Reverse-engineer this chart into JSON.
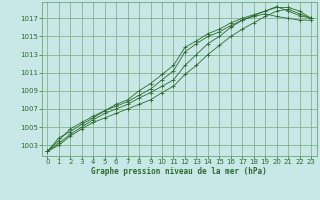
{
  "title": "Graphe pression niveau de la mer (hPa)",
  "background_color": "#c8e8e8",
  "grid_color": "#7aaa7a",
  "line_color": "#2d6a2d",
  "spine_color": "#5a9a5a",
  "xlim": [
    -0.5,
    23.5
  ],
  "ylim": [
    1001.8,
    1018.8
  ],
  "xticks": [
    0,
    1,
    2,
    3,
    4,
    5,
    6,
    7,
    8,
    9,
    10,
    11,
    12,
    13,
    14,
    15,
    16,
    17,
    18,
    19,
    20,
    21,
    22,
    23
  ],
  "yticks": [
    1003,
    1005,
    1007,
    1009,
    1011,
    1013,
    1015,
    1017
  ],
  "series": [
    [
      1002.3,
      1003.8,
      1004.5,
      1005.3,
      1006.0,
      1006.8,
      1007.3,
      1007.8,
      1008.5,
      1009.2,
      1010.2,
      1011.2,
      1013.3,
      1014.2,
      1015.0,
      1015.5,
      1016.2,
      1016.8,
      1017.2,
      1017.5,
      1017.2,
      1017.0,
      1016.8,
      1016.8
    ],
    [
      1002.3,
      1003.5,
      1004.8,
      1005.5,
      1006.2,
      1006.8,
      1007.5,
      1008.0,
      1009.0,
      1009.8,
      1010.8,
      1011.8,
      1013.8,
      1014.5,
      1015.3,
      1015.8,
      1016.5,
      1017.0,
      1017.4,
      1017.8,
      1018.3,
      1017.8,
      1017.3,
      1017.0
    ],
    [
      1002.3,
      1003.2,
      1004.2,
      1005.0,
      1005.8,
      1006.5,
      1007.0,
      1007.5,
      1008.2,
      1008.8,
      1009.5,
      1010.2,
      1011.8,
      1013.0,
      1014.2,
      1015.0,
      1016.0,
      1016.8,
      1017.3,
      1017.8,
      1018.2,
      1018.2,
      1017.8,
      1017.0
    ],
    [
      1002.3,
      1003.0,
      1004.0,
      1004.8,
      1005.5,
      1006.0,
      1006.5,
      1007.0,
      1007.5,
      1008.0,
      1008.8,
      1009.5,
      1010.8,
      1011.8,
      1013.0,
      1014.0,
      1015.0,
      1015.8,
      1016.5,
      1017.2,
      1017.8,
      1018.0,
      1017.5,
      1017.0
    ]
  ]
}
